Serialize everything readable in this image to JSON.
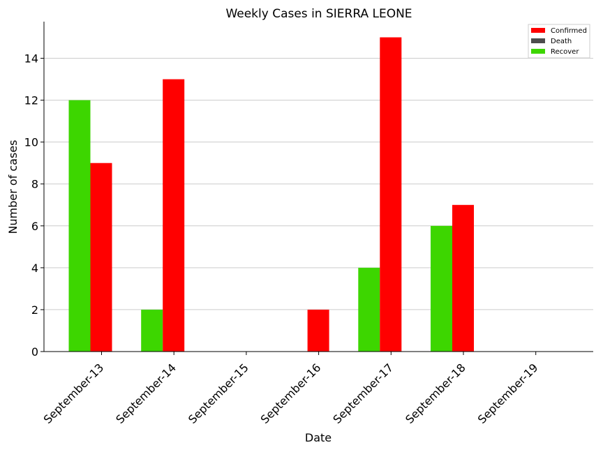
{
  "chart_data": {
    "type": "bar",
    "title": "Weekly Cases in SIERRA LEONE",
    "xlabel": "Date",
    "ylabel": "Number of cases",
    "categories": [
      "September-13",
      "September-14",
      "September-15",
      "September-16",
      "September-17",
      "September-18",
      "September-19"
    ],
    "series": [
      {
        "name": "Confirmed",
        "color": "#ff0000",
        "values": [
          9,
          13,
          0,
          2,
          15,
          7,
          0
        ]
      },
      {
        "name": "Death",
        "color": "#4d4d4d",
        "values": [
          0,
          0,
          0,
          0,
          0,
          0,
          0
        ]
      },
      {
        "name": "Recover",
        "color": "#3dd600",
        "values": [
          12,
          2,
          0,
          0,
          4,
          6,
          0
        ]
      }
    ],
    "ylim": [
      0,
      15.75
    ],
    "yticks": [
      0,
      2,
      4,
      6,
      8,
      10,
      12,
      14
    ],
    "grid": "horizontal",
    "legend_position": "top-right"
  }
}
